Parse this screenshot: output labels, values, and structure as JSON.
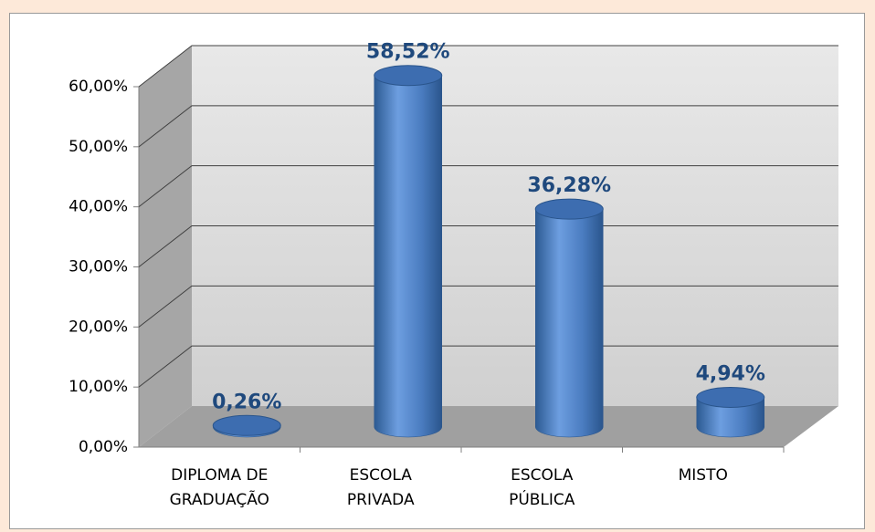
{
  "chart_data": {
    "type": "bar3d",
    "categories": [
      "DIPLOMA DE GRADUAÇÃO",
      "ESCOLA PRIVADA",
      "ESCOLA PÚBLICA",
      "MISTO"
    ],
    "values": [
      0.26,
      58.52,
      36.28,
      4.94
    ],
    "value_labels": [
      "0,26%",
      "58,52%",
      "36,28%",
      "4,94%"
    ],
    "color": "#4f81bd",
    "ylim": [
      0,
      60
    ],
    "yticks": [
      {
        "value": 0,
        "label": "0,00%"
      },
      {
        "value": 10,
        "label": "10,00%"
      },
      {
        "value": 20,
        "label": "20,00%"
      },
      {
        "value": 30,
        "label": "30,00%"
      },
      {
        "value": 40,
        "label": "40,00%"
      },
      {
        "value": 50,
        "label": "50,00%"
      },
      {
        "value": 60,
        "label": "60,00%"
      }
    ],
    "grid": true
  }
}
